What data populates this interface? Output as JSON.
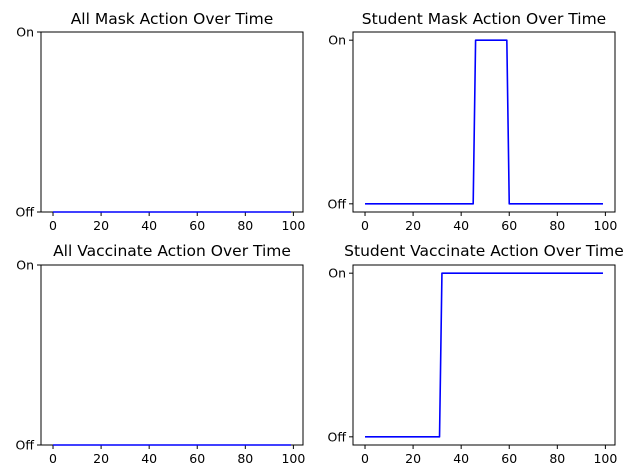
{
  "figure": {
    "background": "#ffffff"
  },
  "chart_data": [
    {
      "type": "line",
      "title": "All Mask Action Over Time",
      "xlabel": "",
      "ylabel": "",
      "xlim": [
        -5,
        104
      ],
      "ylim": [
        0,
        1
      ],
      "x_ticks": [
        0,
        20,
        40,
        60,
        80,
        100
      ],
      "y_ticks": [
        0,
        1
      ],
      "y_tick_labels": [
        "Off",
        "On"
      ],
      "grid": false,
      "series": [
        {
          "color": "#0000ff",
          "x": [
            0,
            99
          ],
          "y": [
            0,
            0
          ]
        }
      ]
    },
    {
      "type": "line",
      "title": "Student Mask Action Over Time",
      "xlabel": "",
      "ylabel": "",
      "xlim": [
        -5,
        104
      ],
      "ylim": [
        -0.05,
        1.05
      ],
      "x_ticks": [
        0,
        20,
        40,
        60,
        80,
        100
      ],
      "y_ticks": [
        0,
        1
      ],
      "y_tick_labels": [
        "Off",
        "On"
      ],
      "grid": false,
      "series": [
        {
          "color": "#0000ff",
          "x": [
            0,
            45,
            46,
            59,
            60,
            99
          ],
          "y": [
            0,
            0,
            1,
            1,
            0,
            0
          ]
        }
      ]
    },
    {
      "type": "line",
      "title": "All Vaccinate Action Over Time",
      "xlabel": "",
      "ylabel": "",
      "xlim": [
        -5,
        104
      ],
      "ylim": [
        0,
        1
      ],
      "x_ticks": [
        0,
        20,
        40,
        60,
        80,
        100
      ],
      "y_ticks": [
        0,
        1
      ],
      "y_tick_labels": [
        "Off",
        "On"
      ],
      "grid": false,
      "series": [
        {
          "color": "#0000ff",
          "x": [
            0,
            99
          ],
          "y": [
            0,
            0
          ]
        }
      ]
    },
    {
      "type": "line",
      "title": "Student Vaccinate Action Over Time",
      "xlabel": "",
      "ylabel": "",
      "xlim": [
        -5,
        104
      ],
      "ylim": [
        -0.05,
        1.05
      ],
      "x_ticks": [
        0,
        20,
        40,
        60,
        80,
        100
      ],
      "y_ticks": [
        0,
        1
      ],
      "y_tick_labels": [
        "Off",
        "On"
      ],
      "grid": false,
      "series": [
        {
          "color": "#0000ff",
          "x": [
            0,
            31,
            32,
            99
          ],
          "y": [
            0,
            0,
            1,
            1
          ]
        }
      ]
    }
  ]
}
